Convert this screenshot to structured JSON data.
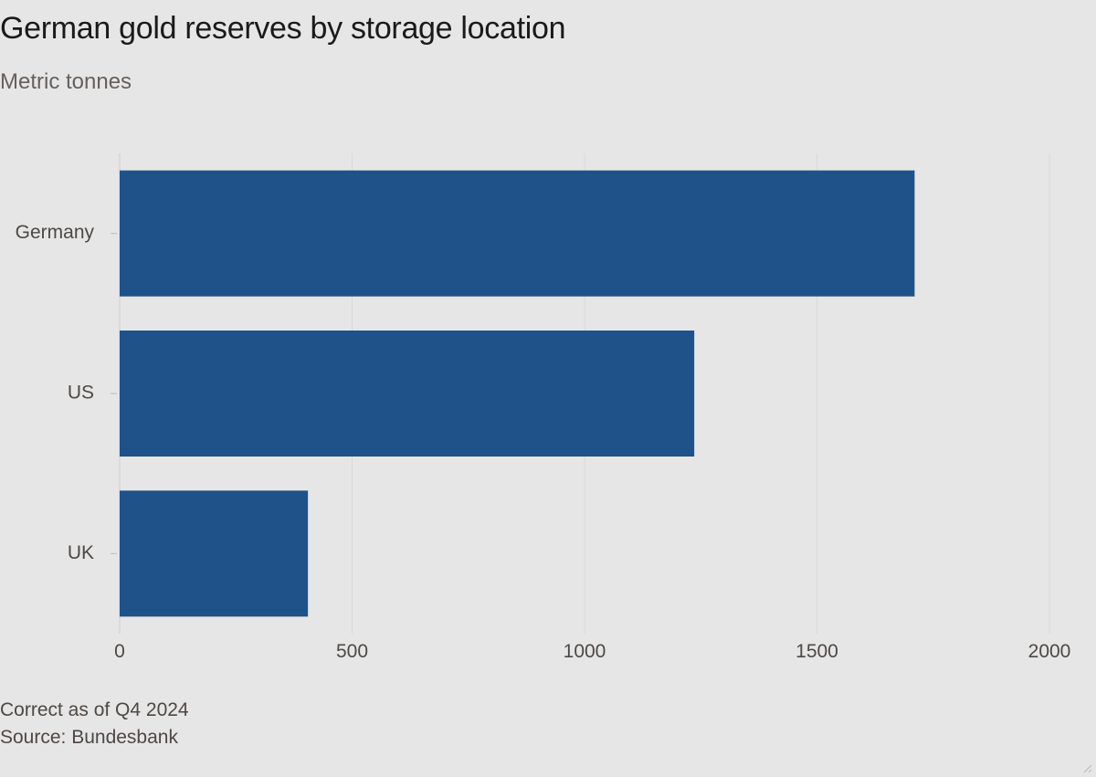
{
  "chart_data": {
    "type": "bar",
    "orientation": "horizontal",
    "title": "German gold reserves by storage location",
    "subtitle": "Metric tonnes",
    "categories": [
      "Germany",
      "US",
      "UK"
    ],
    "values": [
      1710,
      1236,
      405
    ],
    "xlim": [
      0,
      2000
    ],
    "xticks": [
      0,
      500,
      1000,
      1500,
      2000
    ],
    "xtick_labels": [
      "0",
      "500",
      "1000",
      "1500",
      "2000"
    ],
    "xlabel": "",
    "ylabel": "",
    "grid": "vertical",
    "legend": "none",
    "bar_color": "#1f5289",
    "grid_color": "#d9d9d9",
    "note": "Correct as of Q4 2024",
    "source": "Source: Bundesbank"
  },
  "colors": {
    "background": "#e6e6e6",
    "bar": "#1f5289"
  }
}
